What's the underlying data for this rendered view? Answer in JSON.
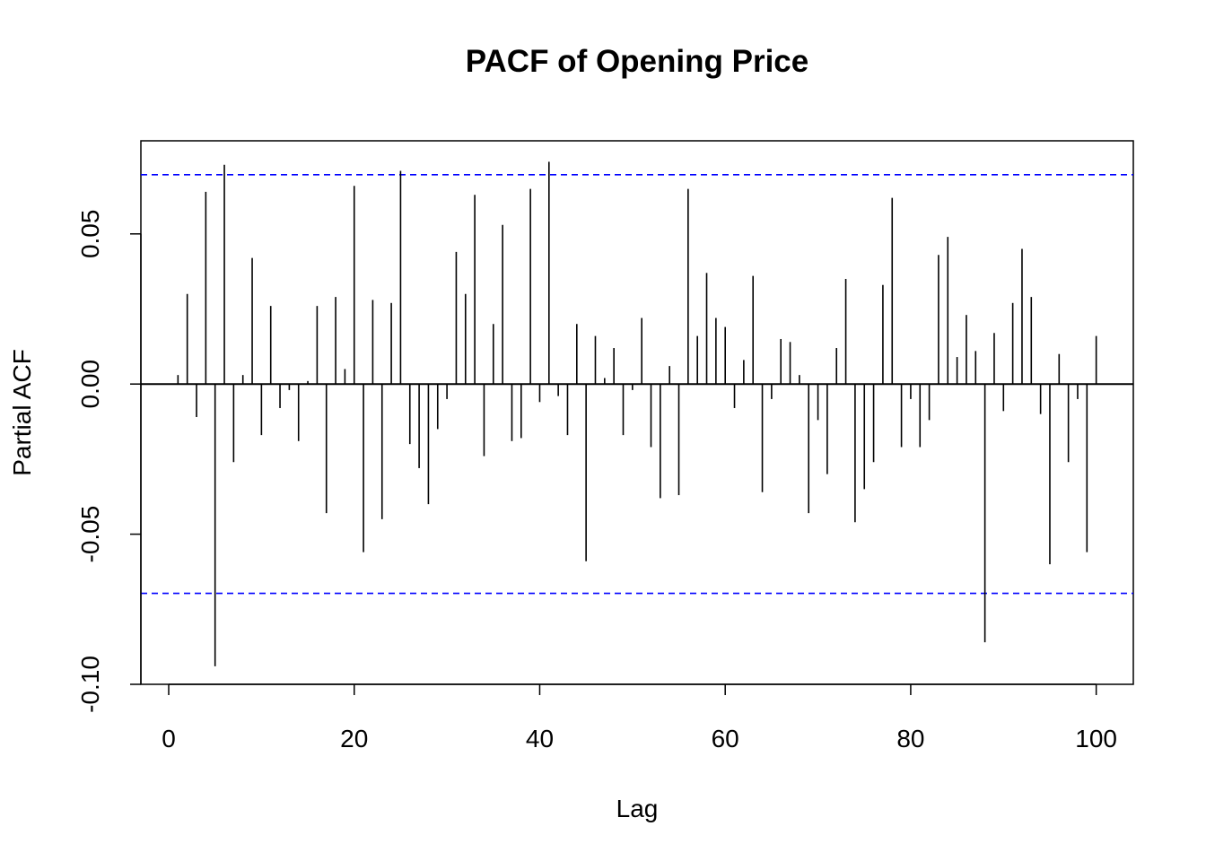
{
  "chart_data": {
    "type": "bar",
    "title": "PACF of Opening Price",
    "xlabel": "Lag",
    "ylabel": "Partial ACF",
    "xlim": [
      -3,
      104
    ],
    "ylim": [
      -0.1,
      0.081
    ],
    "x_ticks": [
      0,
      20,
      40,
      60,
      80,
      100
    ],
    "x_tick_labels": [
      "0",
      "20",
      "40",
      "60",
      "80",
      "100"
    ],
    "y_ticks": [
      -0.1,
      -0.05,
      0,
      0.05
    ],
    "y_tick_labels": [
      "-0.10",
      "-0.05",
      "0.00",
      "0.05"
    ],
    "confidence_bound": 0.0697,
    "confidence_color": "#0000ff",
    "bar_color": "#000000",
    "grid": false,
    "lags": [
      1,
      2,
      3,
      4,
      5,
      6,
      7,
      8,
      9,
      10,
      11,
      12,
      13,
      14,
      15,
      16,
      17,
      18,
      19,
      20,
      21,
      22,
      23,
      24,
      25,
      26,
      27,
      28,
      29,
      30,
      31,
      32,
      33,
      34,
      35,
      36,
      37,
      38,
      39,
      40,
      41,
      42,
      43,
      44,
      45,
      46,
      47,
      48,
      49,
      50,
      51,
      52,
      53,
      54,
      55,
      56,
      57,
      58,
      59,
      60,
      61,
      62,
      63,
      64,
      65,
      66,
      67,
      68,
      69,
      70,
      71,
      72,
      73,
      74,
      75,
      76,
      77,
      78,
      79,
      80,
      81,
      82,
      83,
      84,
      85,
      86,
      87,
      88,
      89,
      90,
      91,
      92,
      93,
      94,
      95,
      96,
      97,
      98,
      99,
      100
    ],
    "values": [
      0.003,
      0.03,
      -0.011,
      0.064,
      -0.094,
      0.073,
      -0.026,
      0.003,
      0.042,
      -0.017,
      0.026,
      -0.008,
      -0.002,
      -0.019,
      0.001,
      0.026,
      -0.043,
      0.029,
      0.005,
      0.066,
      -0.056,
      0.028,
      -0.045,
      0.027,
      0.071,
      -0.02,
      -0.028,
      -0.04,
      -0.015,
      -0.005,
      0.044,
      0.03,
      0.063,
      -0.024,
      0.02,
      0.053,
      -0.019,
      -0.018,
      0.065,
      -0.006,
      0.074,
      -0.004,
      -0.017,
      0.02,
      -0.059,
      0.016,
      0.002,
      0.012,
      -0.017,
      -0.002,
      0.022,
      -0.021,
      -0.038,
      0.006,
      -0.037,
      0.065,
      0.016,
      0.037,
      0.022,
      0.019,
      -0.008,
      0.008,
      0.036,
      -0.036,
      -0.005,
      0.015,
      0.014,
      0.003,
      -0.043,
      -0.012,
      -0.03,
      0.012,
      0.035,
      -0.046,
      -0.035,
      -0.026,
      0.033,
      0.062,
      -0.021,
      -0.005,
      -0.021,
      -0.012,
      0.043,
      0.049,
      0.009,
      0.023,
      0.011,
      -0.086,
      0.017,
      -0.009,
      0.027,
      0.045,
      0.029,
      -0.01,
      -0.06,
      0.01,
      -0.026,
      -0.005,
      -0.056,
      0.016
    ]
  }
}
